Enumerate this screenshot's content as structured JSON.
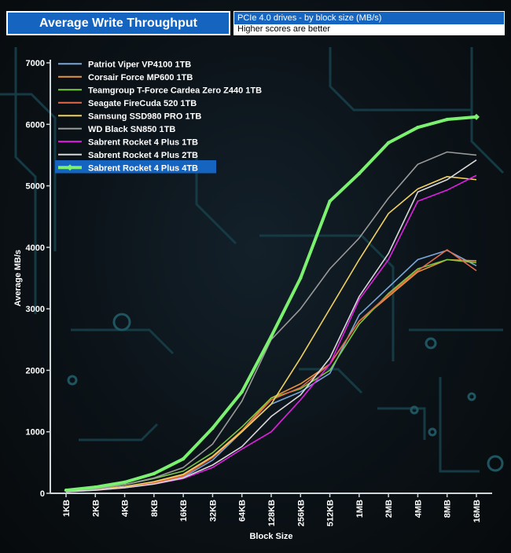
{
  "title": "Average Write Throughput",
  "subtitle": "PCIe 4.0 drives - by block size (MB/s)",
  "note": "Higher scores are better",
  "chart_data": {
    "type": "line",
    "xlabel": "Block Size",
    "ylabel": "Average MB/s",
    "ylim": [
      0,
      7000
    ],
    "yticks": [
      0,
      1000,
      2000,
      3000,
      4000,
      5000,
      6000,
      7000
    ],
    "categories": [
      "1KB",
      "2KB",
      "4KB",
      "8KB",
      "16KB",
      "32KB",
      "64KB",
      "128KB",
      "256KB",
      "512KB",
      "1MB",
      "2MB",
      "4MB",
      "8MB",
      "16MB"
    ],
    "legend_position": "top-left",
    "highlighted_series": "Sabrent Rocket 4 Plus 4TB",
    "series": [
      {
        "name": "Patriot Viper VP4100 1TB",
        "color": "#7aa6d8",
        "values": [
          30,
          55,
          95,
          160,
          260,
          540,
          1000,
          1450,
          1650,
          1950,
          2900,
          3350,
          3800,
          3950,
          3700
        ]
      },
      {
        "name": "Corsair Force MP600 1TB",
        "color": "#e8943a",
        "values": [
          30,
          60,
          110,
          180,
          300,
          600,
          1020,
          1550,
          1780,
          2100,
          2800,
          3200,
          3600,
          3800,
          3780
        ]
      },
      {
        "name": "Teamgroup T-Force Cardea Zero Z440 1TB",
        "color": "#7ac943",
        "values": [
          40,
          75,
          140,
          240,
          360,
          660,
          1080,
          1550,
          1700,
          2000,
          2750,
          3250,
          3650,
          3800,
          3750
        ]
      },
      {
        "name": "Seagate FireCuda 520 1TB",
        "color": "#e06a4c",
        "values": [
          30,
          55,
          100,
          170,
          280,
          580,
          1000,
          1520,
          1720,
          2100,
          2800,
          3230,
          3620,
          3960,
          3620
        ]
      },
      {
        "name": "Samsung SSD980 PRO 1TB",
        "color": "#f0d060",
        "values": [
          35,
          60,
          110,
          190,
          310,
          600,
          1000,
          1450,
          2200,
          3000,
          3800,
          4550,
          4950,
          5150,
          5100
        ]
      },
      {
        "name": "WD Black SN850 1TB",
        "color": "#9a9a9a",
        "values": [
          35,
          70,
          140,
          250,
          420,
          800,
          1500,
          2500,
          3000,
          3650,
          4150,
          4800,
          5350,
          5550,
          5500
        ]
      },
      {
        "name": "Sabrent Rocket 4 Plus 1TB",
        "color": "#e020e0",
        "values": [
          25,
          50,
          90,
          150,
          240,
          420,
          720,
          1000,
          1520,
          2100,
          3150,
          3800,
          4750,
          4930,
          5170
        ]
      },
      {
        "name": "Sabrent Rocket 4 Plus 2TB",
        "color": "#d8d8d8",
        "values": [
          25,
          50,
          90,
          150,
          250,
          460,
          760,
          1250,
          1600,
          2200,
          3200,
          3900,
          4900,
          5100,
          5420
        ]
      },
      {
        "name": "Sabrent Rocket 4 Plus 4TB",
        "color": "#7cf070",
        "values": [
          50,
          100,
          180,
          320,
          560,
          1060,
          1650,
          2550,
          3500,
          4750,
          5200,
          5700,
          5950,
          6080,
          6120
        ]
      }
    ]
  }
}
